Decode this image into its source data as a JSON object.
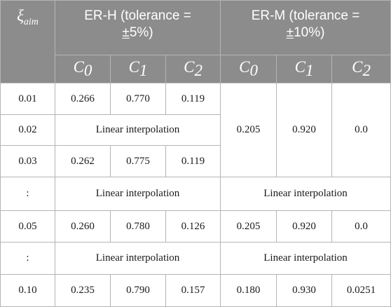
{
  "header": {
    "xi_symbol": "ξ",
    "xi_subscript": "aim",
    "group_erh_line1": "ER-H (tolerance =",
    "group_erh_pm": "±",
    "group_erh_rest": "5%)",
    "group_erm_line1": "ER-M (tolerance =",
    "group_erm_pm": "±",
    "group_erm_rest": "10%)",
    "coef_symbol": "C",
    "coef_subscripts": [
      "0",
      "1",
      "2",
      "0",
      "1",
      "2"
    ]
  },
  "rows": {
    "r001": {
      "xi": "0.01",
      "h": [
        "0.266",
        "0.770",
        "0.119"
      ]
    },
    "r002": {
      "xi": "0.02",
      "h_interp": "Linear interpolation"
    },
    "r003": {
      "xi": "0.03",
      "h": [
        "0.262",
        "0.775",
        "0.119"
      ]
    },
    "m_shared": [
      "0.205",
      "0.920",
      "0.0"
    ],
    "r_dots1": {
      "xi": ":",
      "h_interp": "Linear interpolation",
      "m_interp": "Linear interpolation"
    },
    "r005": {
      "xi": "0.05",
      "h": [
        "0.260",
        "0.780",
        "0.126"
      ],
      "m": [
        "0.205",
        "0.920",
        "0.0"
      ]
    },
    "r_dots2": {
      "xi": ":",
      "h_interp": "Linear interpolation",
      "m_interp": "Linear interpolation"
    },
    "r010": {
      "xi": "0.10",
      "h": [
        "0.235",
        "0.790",
        "0.157"
      ],
      "m": [
        "0.180",
        "0.930",
        "0.0251"
      ]
    }
  },
  "colors": {
    "header_bg": "#8c8c8c",
    "header_text": "#ffffff",
    "grid_line": "#b5b5b5",
    "body_text": "#1a1a1a"
  }
}
